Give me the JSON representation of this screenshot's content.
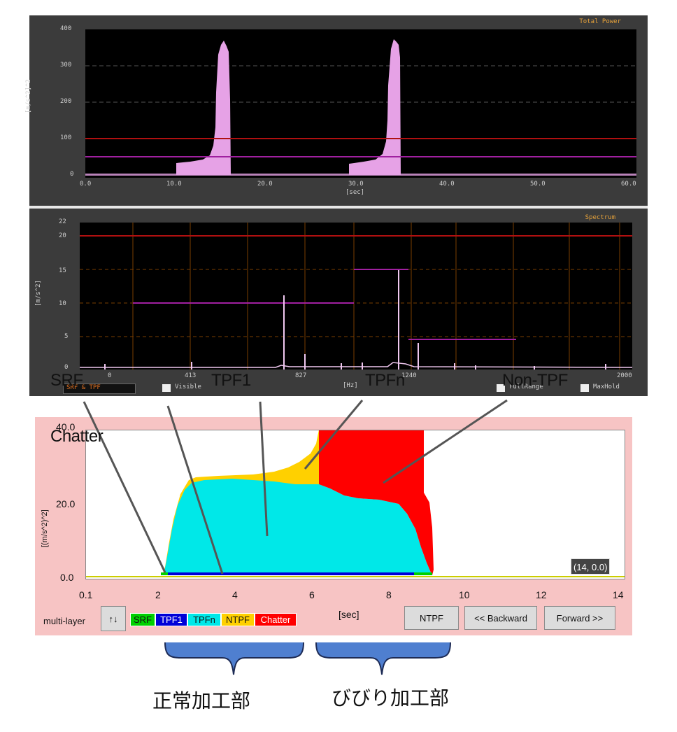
{
  "total_power": {
    "title": "Total Power",
    "ylabel": "[m/s^2]^2",
    "xlabel": "[sec]",
    "yticks": [
      "400",
      "300",
      "200",
      "100",
      "0"
    ],
    "xticks": [
      "0.0",
      "10.0",
      "20.0",
      "30.0",
      "40.0",
      "50.0",
      "60.0"
    ]
  },
  "spectrum": {
    "title": "Spectrum",
    "ylabel": "[m/s^2]",
    "xlabel": "[Hz]",
    "yticks": [
      "22",
      "20",
      "15",
      "10",
      "5",
      "0"
    ],
    "xticks": [
      "0",
      "413",
      "827",
      "1240",
      "2000"
    ],
    "footer": {
      "select": "SRF & TPF",
      "visible_label": "Visible",
      "fullrange_label": "FullRange",
      "maxhold_label": "MaxHold"
    }
  },
  "callouts": {
    "srf": "SRF",
    "tpf1": "TPF1",
    "tpfn": "TPFn",
    "non_tpf": "Non-TPF",
    "chatter": "Chatter"
  },
  "multilayer": {
    "ylabel": "[(m/s^2)^2]",
    "ytick_top": "40.0",
    "yticks": [
      "20.0",
      "0.0"
    ],
    "xticks": [
      "0.1",
      "2",
      "4",
      "6",
      "8",
      "10",
      "12",
      "14"
    ],
    "xlabel": "[sec]",
    "coord_readout": "(14, 0.0)",
    "mode_label": "multi-layer",
    "toggle_icon": "↑↓",
    "legend": [
      {
        "label": "SRF",
        "bg": "#00d000",
        "fg": "#111111"
      },
      {
        "label": "TPF1",
        "bg": "#0000d8",
        "fg": "#ffffff"
      },
      {
        "label": "TPFn",
        "bg": "#00e8e8",
        "fg": "#111111"
      },
      {
        "label": "NTPF",
        "bg": "#ffd000",
        "fg": "#111111"
      },
      {
        "label": "Chatter",
        "bg": "#ff0000",
        "fg": "#ffffff"
      }
    ],
    "buttons": {
      "ntpf": "NTPF",
      "backward": "<< Backward",
      "forward": "Forward >>"
    }
  },
  "annotations": {
    "normal": "正常加工部",
    "chatter": "びびり加工部"
  },
  "colors": {
    "panel_bg": "#3b3b3b",
    "power_fill": "#e6a2e6",
    "threshold_red": "#b01010",
    "threshold_purple": "#a020a0",
    "grid_orange": "#7a3e00",
    "multilayer_bg": "#f7c4c4",
    "brace_blue": "#4f7fd0"
  }
}
